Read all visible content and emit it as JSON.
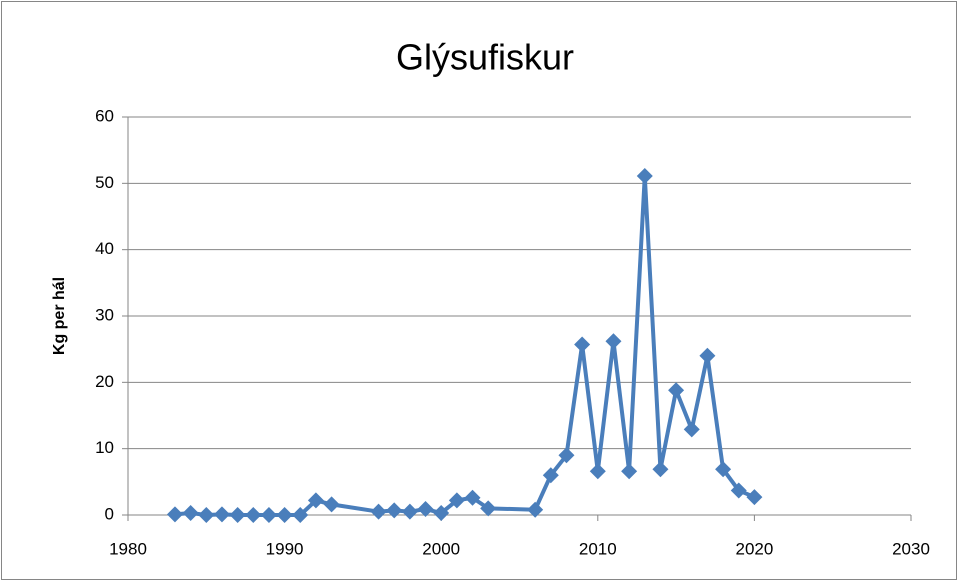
{
  "chart_data": {
    "type": "line",
    "title": "Glýsufiskur",
    "y_label": "Kg per hál",
    "x": [
      1983,
      1984,
      1985,
      1986,
      1987,
      1988,
      1989,
      1990,
      1991,
      1992,
      1993,
      1996,
      1997,
      1998,
      1999,
      2000,
      2001,
      2002,
      2003,
      2006,
      2007,
      2008,
      2009,
      2010,
      2011,
      2012,
      2013,
      2014,
      2015,
      2016,
      2017,
      2018,
      2019,
      2020
    ],
    "values": [
      0.1,
      0.3,
      0,
      0.1,
      0,
      0,
      0,
      0,
      0,
      2.2,
      1.6,
      0.5,
      0.7,
      0.5,
      0.9,
      0.3,
      2.2,
      2.6,
      1,
      0.8,
      6,
      9,
      25.7,
      6.6,
      26.2,
      6.6,
      51.1,
      6.9,
      18.8,
      12.9,
      24,
      6.9,
      3.7,
      2.7
    ],
    "color": "#4a7ebb",
    "xlim": [
      1980,
      2030
    ],
    "xticks": [
      1980,
      1990,
      2000,
      2010,
      2020,
      2030
    ],
    "ylim": [
      0,
      60
    ],
    "yticks": [
      0,
      10,
      20,
      30,
      40,
      50,
      60
    ],
    "grid": true
  }
}
